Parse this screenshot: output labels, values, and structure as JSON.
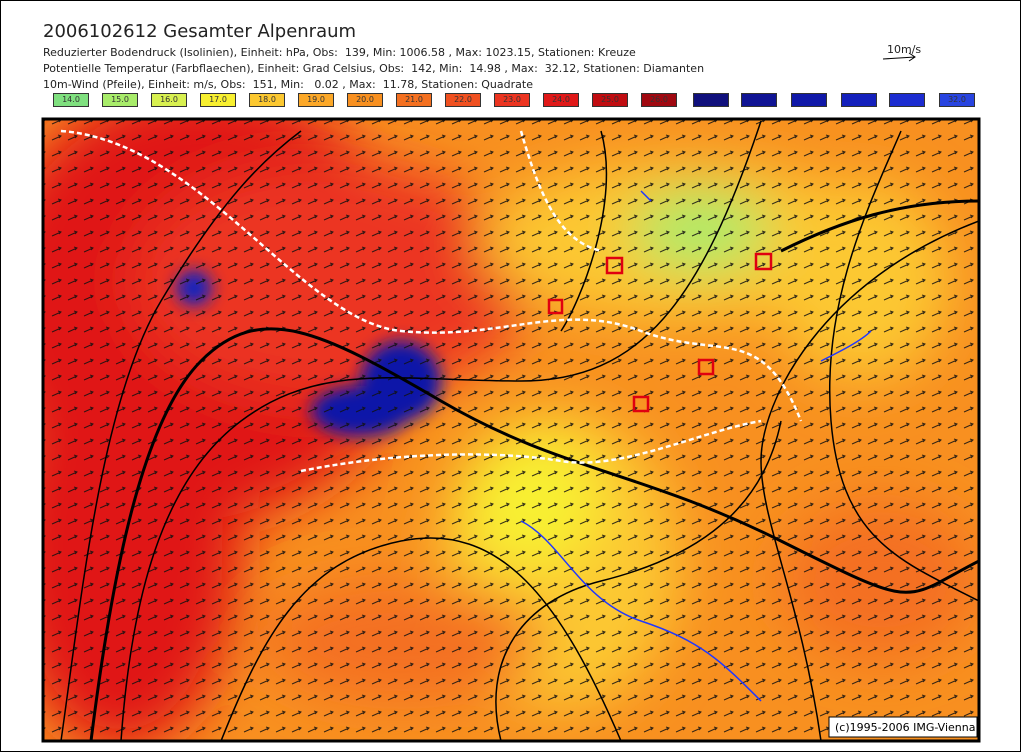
{
  "header": {
    "title": "2006102612 Gesamter Alpenraum",
    "lines": [
      "Reduzierter Bodendruck (Isolinien), Einheit: hPa, Obs:  139, Min: 1006.58 , Max: 1023.15, Stationen: Kreuze",
      "Potentielle Temperatur (Farbflaechen), Einheit: Grad Celsius, Obs:  142, Min:  14.98 , Max:  32.12, Stationen: Diamanten",
      "10m-Wind (Pfeile), Einheit: m/s, Obs:  151, Min:   0.02 , Max:  11.78, Stationen: Quadrate"
    ],
    "scale_label": "10m/s"
  },
  "legend": [
    {
      "label": "14.0",
      "color": "#7fe07f"
    },
    {
      "label": "15.0",
      "color": "#a8ec6a"
    },
    {
      "label": "16.0",
      "color": "#d8f050"
    },
    {
      "label": "17.0",
      "color": "#f8f030"
    },
    {
      "label": "18.0",
      "color": "#fcc830"
    },
    {
      "label": "19.0",
      "color": "#fca828"
    },
    {
      "label": "20.0",
      "color": "#f89020"
    },
    {
      "label": "21.0",
      "color": "#f47020"
    },
    {
      "label": "22.0",
      "color": "#f05020"
    },
    {
      "label": "23.0",
      "color": "#ec3420"
    },
    {
      "label": "24.0",
      "color": "#e01818"
    },
    {
      "label": "25.0",
      "color": "#c00c10"
    },
    {
      "label": "26.0",
      "color": "#a00810"
    },
    {
      "label": null,
      "color": "#10107c"
    },
    {
      "label": null,
      "color": "#101494"
    },
    {
      "label": null,
      "color": "#1018a8"
    },
    {
      "label": null,
      "color": "#1420bc"
    },
    {
      "label": null,
      "color": "#1c2cd0"
    },
    {
      "label": "32.0",
      "color": "#2844e0"
    }
  ],
  "footer": {
    "copyright": "(c)1995-2006 IMG-Vienna"
  }
}
